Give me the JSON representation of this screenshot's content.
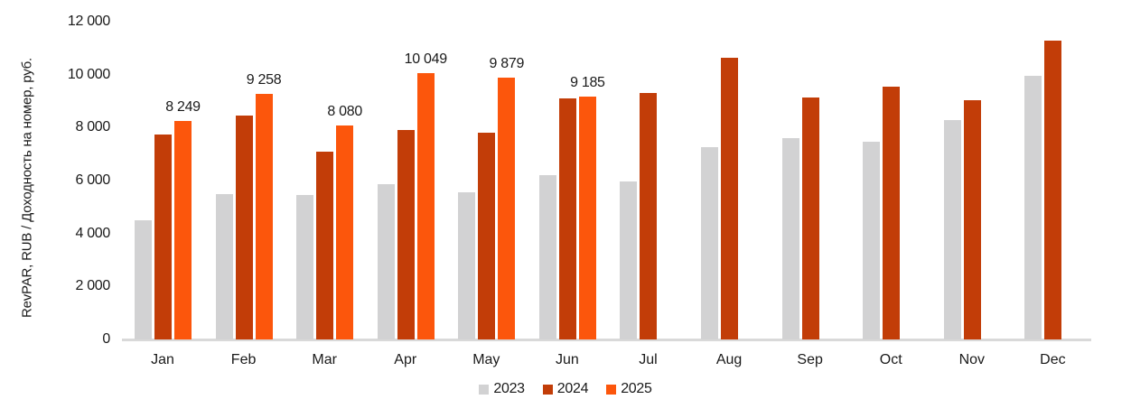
{
  "chart_data": {
    "type": "bar",
    "title": "",
    "ylabel": "RevPAR, RUB / Доходность на номер, руб.",
    "xlabel": "",
    "ylim": [
      0,
      12000
    ],
    "grid": false,
    "legend_position": "bottom-center",
    "y_ticks": [
      "0",
      "2 000",
      "4 000",
      "6 000",
      "8 000",
      "10 000",
      "12 000"
    ],
    "categories": [
      "Jan",
      "Feb",
      "Mar",
      "Apr",
      "May",
      "Jun",
      "Jul",
      "Aug",
      "Sep",
      "Oct",
      "Nov",
      "Dec"
    ],
    "series": [
      {
        "name": "2023",
        "color": "#d2d2d3",
        "values": [
          4500,
          5500,
          5450,
          5850,
          5550,
          6200,
          5950,
          7250,
          7600,
          7450,
          8300,
          9950
        ],
        "data_labels": [
          null,
          null,
          null,
          null,
          null,
          null,
          null,
          null,
          null,
          null,
          null,
          null
        ]
      },
      {
        "name": "2024",
        "color": "#c23d08",
        "values": [
          7750,
          8450,
          7100,
          7900,
          7800,
          9100,
          9300,
          10650,
          9130,
          9550,
          9050,
          11300
        ],
        "data_labels": [
          null,
          null,
          null,
          null,
          null,
          null,
          null,
          null,
          null,
          null,
          null,
          null
        ]
      },
      {
        "name": "2025",
        "color": "#fc560c",
        "values": [
          8249,
          9258,
          8080,
          10049,
          9879,
          9185,
          null,
          null,
          null,
          null,
          null,
          null
        ],
        "data_labels": [
          "8 249",
          "9 258",
          "8 080",
          "10 049",
          "9 879",
          "9 185",
          null,
          null,
          null,
          null,
          null,
          null
        ]
      }
    ]
  },
  "colors": {
    "axis_line": "#d9d9d9",
    "text": "#1a1a1a",
    "background": "#ffffff"
  }
}
